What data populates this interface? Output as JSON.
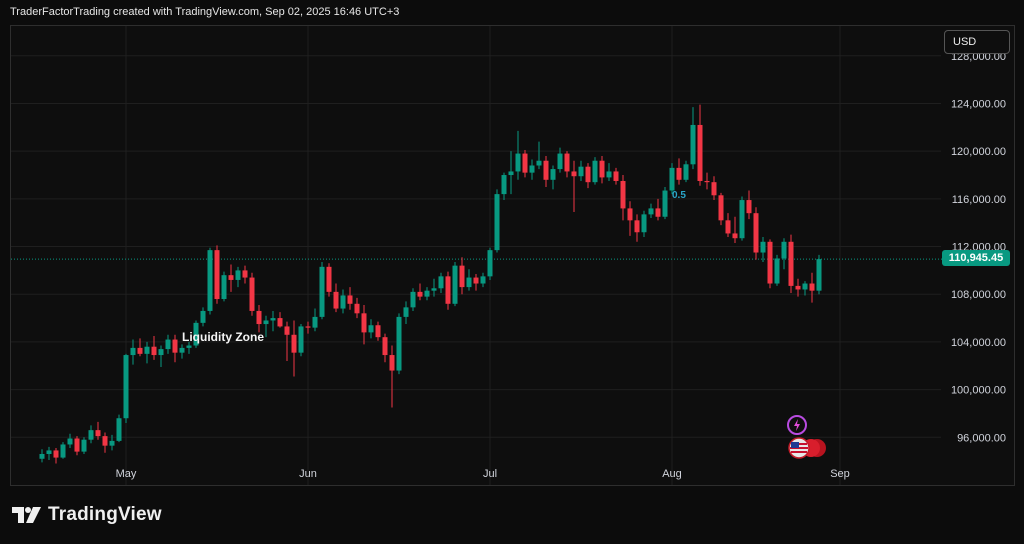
{
  "header": {
    "text": "TraderFactorTrading created with TradingView.com, Sep 02, 2025 16:46 UTC+3"
  },
  "currency_button": {
    "label": "USD"
  },
  "last_price": {
    "label": "110,945.45"
  },
  "annotations": {
    "zone": "Liquidity Zone",
    "fib": "0.5"
  },
  "footer": {
    "brand": "TradingView"
  },
  "colors": {
    "up": "#089981",
    "down": "#f23645",
    "background": "#0c0c0c",
    "grid": "#1f1f1f",
    "text": "#d1d4dc"
  },
  "icons": [
    "tradingview-logo-icon",
    "lightning-icon",
    "us-flag-icon"
  ],
  "chart_data": {
    "type": "candlestick",
    "y_axis": {
      "ticks": [
        96000,
        100000,
        104000,
        108000,
        112000,
        116000,
        120000,
        124000,
        128000
      ],
      "tick_labels": [
        "96,000.00",
        "100,000.00",
        "104,000.00",
        "108,000.00",
        "112,000.00",
        "116,000.00",
        "120,000.00",
        "124,000.00",
        "128,000.00"
      ],
      "range": [
        92000,
        130500
      ]
    },
    "x_axis": {
      "ticks": [
        {
          "label": "May",
          "index": 12
        },
        {
          "label": "Jun",
          "index": 38
        },
        {
          "label": "Jul",
          "index": 64
        },
        {
          "label": "Aug",
          "index": 90
        },
        {
          "label": "Sep",
          "index": 114
        }
      ]
    },
    "last_price": 110945.45,
    "candles": [
      [
        94200,
        95000,
        93900,
        94600
      ],
      [
        94600,
        95200,
        94100,
        94900
      ],
      [
        94900,
        95100,
        93800,
        94300
      ],
      [
        94300,
        95600,
        94200,
        95400
      ],
      [
        95400,
        96300,
        95100,
        95900
      ],
      [
        95900,
        96100,
        94500,
        94800
      ],
      [
        94800,
        96000,
        94600,
        95800
      ],
      [
        95800,
        97000,
        95500,
        96600
      ],
      [
        96600,
        97300,
        95800,
        96100
      ],
      [
        96100,
        96400,
        94700,
        95300
      ],
      [
        95300,
        96200,
        94900,
        95700
      ],
      [
        95700,
        97900,
        95600,
        97600
      ],
      [
        97600,
        103000,
        97200,
        102900
      ],
      [
        102900,
        104200,
        102100,
        103500
      ],
      [
        103500,
        104300,
        102800,
        103000
      ],
      [
        103000,
        104000,
        102200,
        103600
      ],
      [
        103600,
        104500,
        102500,
        102900
      ],
      [
        102900,
        103700,
        101900,
        103400
      ],
      [
        103400,
        104600,
        103000,
        104200
      ],
      [
        104200,
        104600,
        102300,
        103100
      ],
      [
        103100,
        103800,
        102600,
        103500
      ],
      [
        103500,
        104000,
        103000,
        103700
      ],
      [
        103700,
        105800,
        103500,
        105600
      ],
      [
        105600,
        106900,
        105300,
        106600
      ],
      [
        106600,
        111900,
        106300,
        111700
      ],
      [
        111700,
        112100,
        107200,
        107600
      ],
      [
        107600,
        109900,
        107400,
        109600
      ],
      [
        109600,
        110500,
        108200,
        109200
      ],
      [
        109200,
        110300,
        108600,
        110000
      ],
      [
        110000,
        110400,
        108900,
        109400
      ],
      [
        109400,
        109800,
        106200,
        106600
      ],
      [
        106600,
        107100,
        104800,
        105500
      ],
      [
        105500,
        106200,
        104400,
        105800
      ],
      [
        105800,
        106600,
        104900,
        106000
      ],
      [
        106000,
        106500,
        105200,
        105300
      ],
      [
        105300,
        105700,
        102400,
        104600
      ],
      [
        104600,
        105800,
        101100,
        103100
      ],
      [
        103100,
        105500,
        102800,
        105300
      ],
      [
        105300,
        105700,
        104700,
        105200
      ],
      [
        105200,
        106800,
        104900,
        106100
      ],
      [
        106100,
        110700,
        105900,
        110300
      ],
      [
        110300,
        110600,
        107800,
        108200
      ],
      [
        108200,
        108900,
        106500,
        106800
      ],
      [
        106800,
        108400,
        106400,
        107900
      ],
      [
        107900,
        108600,
        106700,
        107200
      ],
      [
        107200,
        107700,
        106000,
        106400
      ],
      [
        106400,
        107100,
        103800,
        104800
      ],
      [
        104800,
        105900,
        104300,
        105400
      ],
      [
        105400,
        105700,
        104100,
        104400
      ],
      [
        104400,
        104700,
        102300,
        102900
      ],
      [
        102900,
        103700,
        98500,
        101600
      ],
      [
        101600,
        106400,
        101300,
        106100
      ],
      [
        106100,
        107400,
        105500,
        106900
      ],
      [
        106900,
        108500,
        106600,
        108200
      ],
      [
        108200,
        108900,
        107500,
        107800
      ],
      [
        107800,
        108600,
        107500,
        108300
      ],
      [
        108300,
        109300,
        107800,
        108500
      ],
      [
        108500,
        109800,
        108100,
        109500
      ],
      [
        109500,
        109900,
        106700,
        107200
      ],
      [
        107200,
        110700,
        107000,
        110400
      ],
      [
        110400,
        111100,
        108000,
        108600
      ],
      [
        108600,
        110100,
        108300,
        109400
      ],
      [
        109400,
        109700,
        108300,
        108900
      ],
      [
        108900,
        109800,
        108600,
        109500
      ],
      [
        109500,
        111900,
        109200,
        111700
      ],
      [
        111700,
        116800,
        111500,
        116400
      ],
      [
        116400,
        118200,
        115900,
        118000
      ],
      [
        118000,
        120000,
        116400,
        118300
      ],
      [
        118300,
        121700,
        117600,
        119800
      ],
      [
        119800,
        120100,
        117800,
        118200
      ],
      [
        118200,
        119300,
        117600,
        118800
      ],
      [
        118800,
        120800,
        118500,
        119200
      ],
      [
        119200,
        119600,
        117000,
        117600
      ],
      [
        117600,
        118800,
        116800,
        118500
      ],
      [
        118500,
        120300,
        118200,
        119800
      ],
      [
        119800,
        120000,
        117800,
        118300
      ],
      [
        118300,
        119200,
        114900,
        117900
      ],
      [
        117900,
        119200,
        117500,
        118700
      ],
      [
        118700,
        119000,
        116900,
        117400
      ],
      [
        117400,
        119500,
        117200,
        119200
      ],
      [
        119200,
        119600,
        117300,
        117800
      ],
      [
        117800,
        119000,
        117500,
        118300
      ],
      [
        118300,
        118600,
        117200,
        117500
      ],
      [
        117500,
        118000,
        114200,
        115200
      ],
      [
        115200,
        115800,
        112900,
        114200
      ],
      [
        114200,
        114700,
        112400,
        113200
      ],
      [
        113200,
        115000,
        112800,
        114700
      ],
      [
        114700,
        115600,
        114400,
        115200
      ],
      [
        115200,
        116000,
        114200,
        114500
      ],
      [
        114500,
        117000,
        114300,
        116700
      ],
      [
        116700,
        119000,
        116400,
        118600
      ],
      [
        118600,
        119400,
        117200,
        117600
      ],
      [
        117600,
        119200,
        117400,
        118900
      ],
      [
        118900,
        123700,
        118500,
        122200
      ],
      [
        122200,
        123900,
        117100,
        117500
      ],
      [
        117500,
        118200,
        116800,
        117400
      ],
      [
        117400,
        117900,
        115900,
        116300
      ],
      [
        116300,
        116500,
        113800,
        114200
      ],
      [
        114200,
        114800,
        112800,
        113100
      ],
      [
        113100,
        114500,
        112300,
        112700
      ],
      [
        112700,
        116200,
        112500,
        115900
      ],
      [
        115900,
        116700,
        114300,
        114800
      ],
      [
        114800,
        115300,
        110900,
        111500
      ],
      [
        111500,
        112800,
        110700,
        112400
      ],
      [
        112400,
        112600,
        108500,
        108900
      ],
      [
        108900,
        111300,
        108700,
        111000
      ],
      [
        111000,
        112700,
        110100,
        112400
      ],
      [
        112400,
        113000,
        108100,
        108700
      ],
      [
        108700,
        109300,
        107800,
        108400
      ],
      [
        108400,
        109100,
        107900,
        108900
      ],
      [
        108900,
        109800,
        107300,
        108300
      ],
      [
        108300,
        111300,
        108000,
        110945
      ]
    ]
  }
}
